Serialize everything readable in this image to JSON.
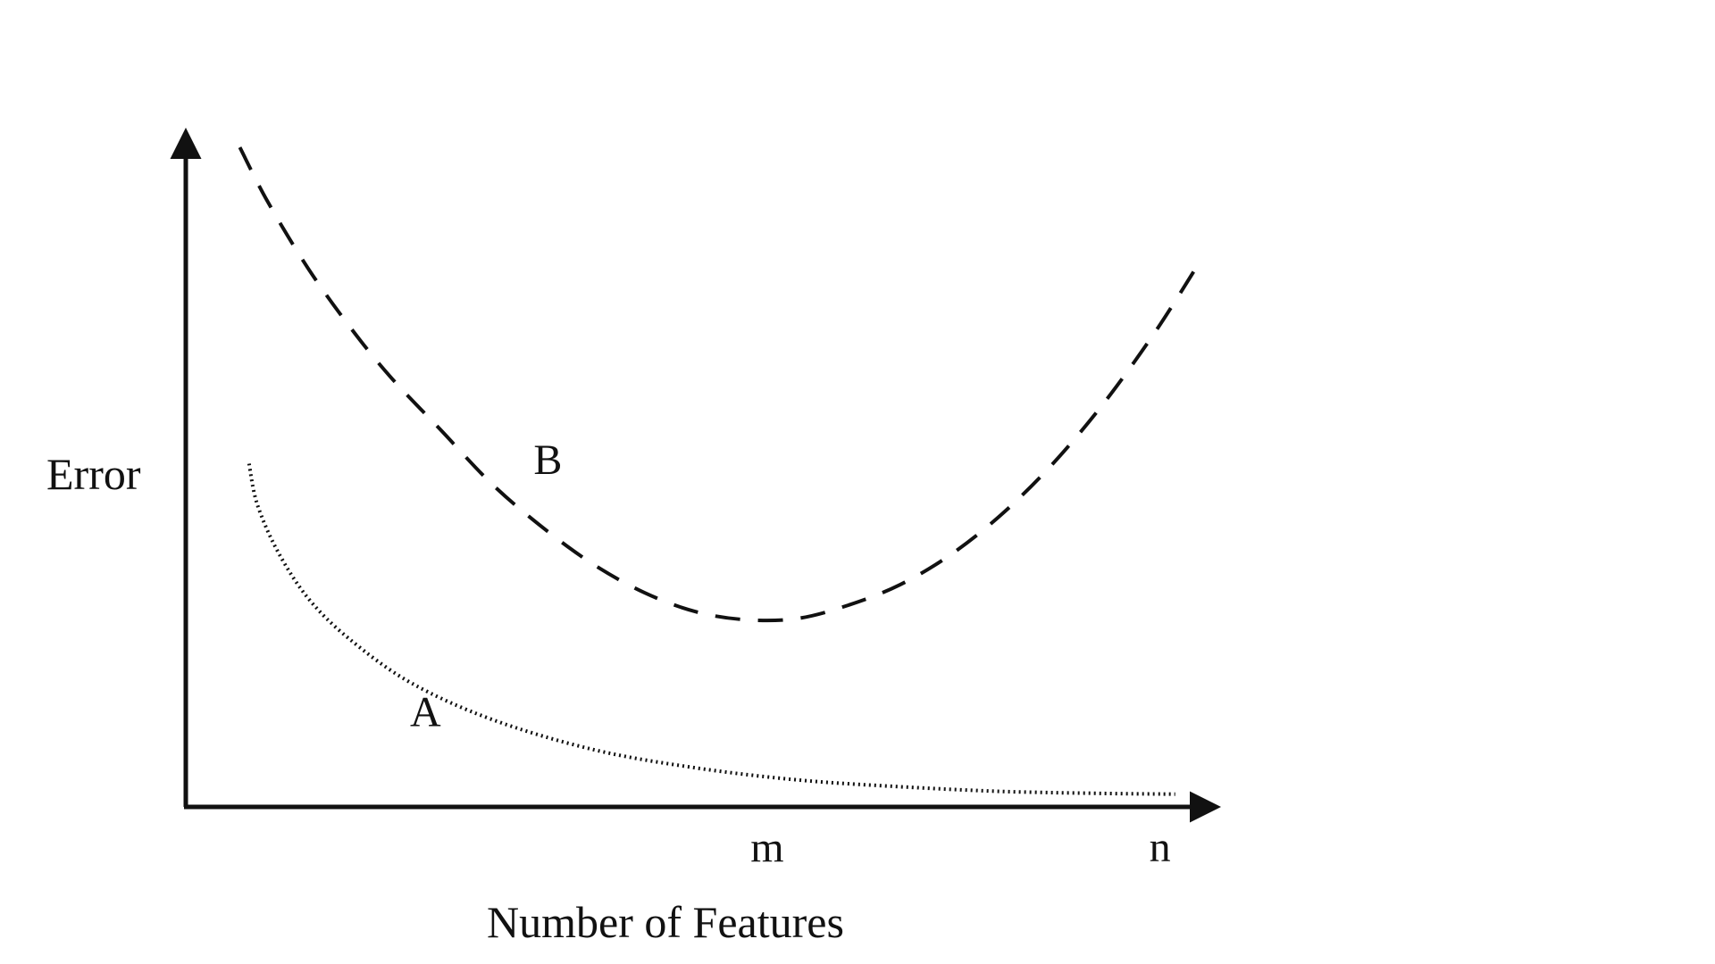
{
  "chart_data": {
    "type": "line",
    "title": "",
    "xlabel": "Number of Features",
    "ylabel": "Error",
    "x_ticks": [
      {
        "label": "m",
        "value": 0.57
      },
      {
        "label": "n",
        "value": 0.955
      }
    ],
    "xlim": [
      0,
      1
    ],
    "ylim": [
      0,
      1
    ],
    "grid": false,
    "legend": "none",
    "series": [
      {
        "name": "A",
        "style": "dotted",
        "color": "#111111",
        "label_at": {
          "x": 0.235,
          "y": 0.12
        },
        "points": [
          [
            0.062,
            0.51
          ],
          [
            0.07,
            0.45
          ],
          [
            0.09,
            0.38
          ],
          [
            0.12,
            0.31
          ],
          [
            0.16,
            0.25
          ],
          [
            0.22,
            0.185
          ],
          [
            0.3,
            0.13
          ],
          [
            0.4,
            0.085
          ],
          [
            0.5,
            0.058
          ],
          [
            0.6,
            0.04
          ],
          [
            0.7,
            0.03
          ],
          [
            0.8,
            0.023
          ],
          [
            0.9,
            0.02
          ],
          [
            0.97,
            0.019
          ]
        ]
      },
      {
        "name": "B",
        "style": "dashed",
        "color": "#111111",
        "label_at": {
          "x": 0.355,
          "y": 0.495
        },
        "points": [
          [
            0.053,
            0.98
          ],
          [
            0.08,
            0.9
          ],
          [
            0.12,
            0.8
          ],
          [
            0.16,
            0.715
          ],
          [
            0.2,
            0.64
          ],
          [
            0.25,
            0.56
          ],
          [
            0.3,
            0.48
          ],
          [
            0.35,
            0.415
          ],
          [
            0.4,
            0.36
          ],
          [
            0.45,
            0.318
          ],
          [
            0.5,
            0.29
          ],
          [
            0.55,
            0.278
          ],
          [
            0.6,
            0.28
          ],
          [
            0.65,
            0.3
          ],
          [
            0.7,
            0.33
          ],
          [
            0.75,
            0.375
          ],
          [
            0.8,
            0.435
          ],
          [
            0.85,
            0.51
          ],
          [
            0.9,
            0.6
          ],
          [
            0.95,
            0.705
          ],
          [
            0.99,
            0.8
          ]
        ]
      }
    ]
  }
}
